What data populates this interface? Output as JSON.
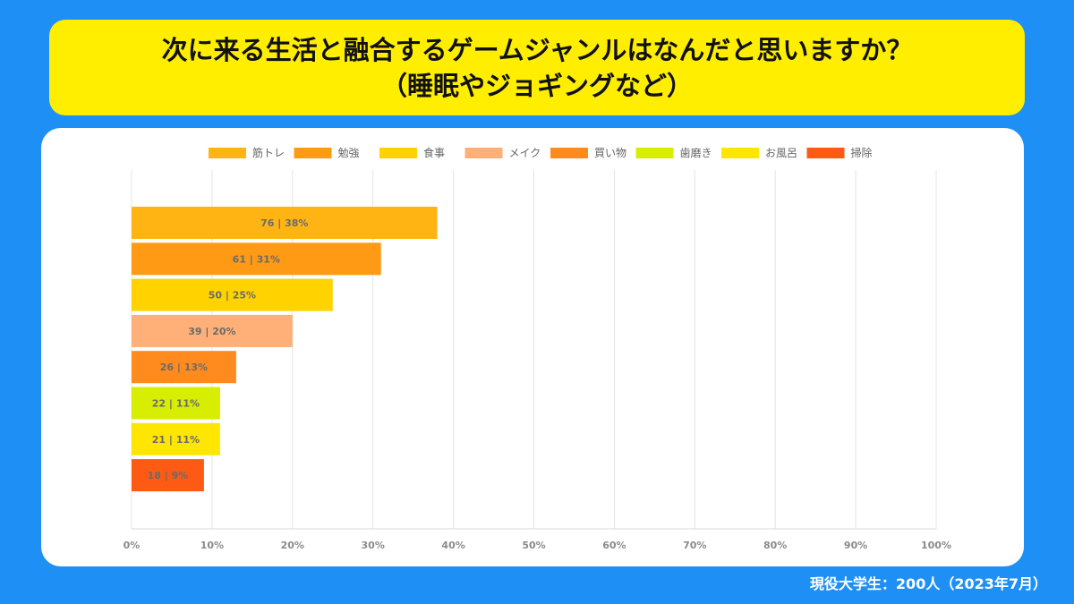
{
  "title": {
    "line1": "次に来る生活と融合するゲームジャンルはなんだと思いますか？",
    "line2": "（睡眠やジョギングなど）"
  },
  "footer": "現役大学生：200人（2023年7月）",
  "chart_data": {
    "type": "bar",
    "orientation": "horizontal",
    "categories": [
      "筋トレ",
      "勉強",
      "食事",
      "メイク",
      "買い物",
      "歯磨き",
      "お風呂",
      "掃除"
    ],
    "series": [
      {
        "counts": [
          76,
          61,
          50,
          39,
          26,
          22,
          21,
          18
        ],
        "values": [
          38,
          31,
          25,
          20,
          13,
          11,
          11,
          9
        ],
        "data_labels": [
          "76 | 38%",
          "61 | 31%",
          "50 | 25%",
          "39 | 20%",
          "26 | 13%",
          "22 | 11%",
          "21 | 11%",
          "18 | 9%"
        ]
      }
    ],
    "colors": [
      "#ffb414",
      "#ff9a14",
      "#ffd200",
      "#ffaf78",
      "#ff8a1e",
      "#d7ee00",
      "#ffe600",
      "#ff5a14"
    ],
    "legend": {
      "position": "top",
      "entries": [
        "筋トレ",
        "勉強",
        "食事",
        "メイク",
        "買い物",
        "歯磨き",
        "お風呂",
        "掃除"
      ]
    },
    "xlim": [
      0,
      100
    ],
    "x_ticks": [
      "0%",
      "10%",
      "20%",
      "30%",
      "40%",
      "50%",
      "60%",
      "70%",
      "80%",
      "90%",
      "100%"
    ],
    "grid": true
  }
}
